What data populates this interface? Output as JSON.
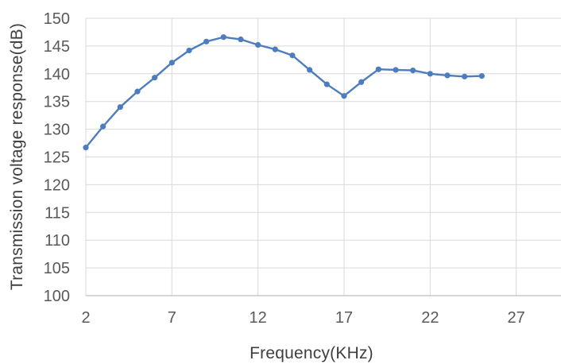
{
  "chart_data": {
    "type": "line",
    "title": "",
    "xlabel": "Frequency(KHz)",
    "ylabel": "Transmission voltage response(dB)",
    "x": [
      2,
      3,
      4,
      5,
      6,
      7,
      8,
      9,
      10,
      11,
      12,
      13,
      14,
      15,
      16,
      17,
      18,
      19,
      20,
      21,
      22,
      23,
      24,
      25
    ],
    "values": [
      126.7,
      130.5,
      134.0,
      136.8,
      139.3,
      142.0,
      144.2,
      145.8,
      146.6,
      146.2,
      145.2,
      144.4,
      143.3,
      140.7,
      138.1,
      136.0,
      138.5,
      140.8,
      140.7,
      140.6,
      140.0,
      139.7,
      139.5,
      139.6
    ],
    "x_ticks": [
      2,
      7,
      12,
      17,
      22,
      27
    ],
    "y_ticks": [
      100,
      105,
      110,
      115,
      120,
      125,
      130,
      135,
      140,
      145,
      150
    ],
    "xlim": [
      2,
      29.6
    ],
    "ylim": [
      100,
      150
    ],
    "grid": true,
    "legend": false,
    "marker": "circle",
    "colors": {
      "line": "#4d7dbc",
      "gridline": "#d9d9d9",
      "axis_line": "#bfbfbf",
      "tick_label": "#595959",
      "axis_title": "#3f3f3f",
      "background": "#ffffff"
    }
  }
}
